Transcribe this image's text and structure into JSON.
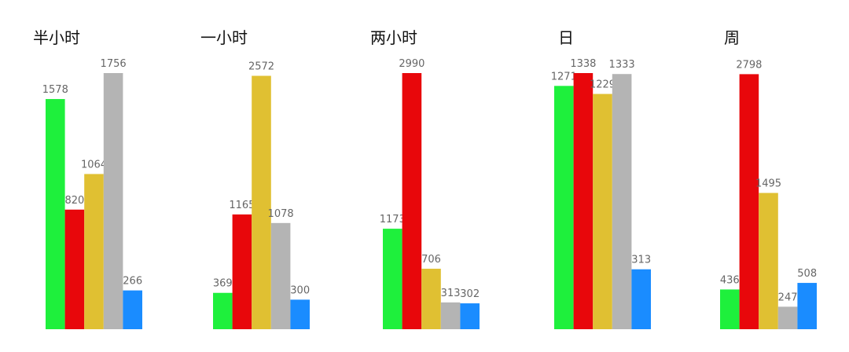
{
  "chart_data": [
    {
      "type": "bar",
      "title": "半小时",
      "values": [
        1578,
        820,
        1064,
        1756,
        266
      ],
      "colors": [
        "#1ef03c",
        "#e8070b",
        "#e0c032",
        "#b4b4b4",
        "#1a8cff"
      ],
      "ylim": [
        0,
        1756
      ]
    },
    {
      "type": "bar",
      "title": "一小时",
      "values": [
        369,
        1165,
        2572,
        1078,
        300
      ],
      "colors": [
        "#1ef03c",
        "#e8070b",
        "#e0c032",
        "#b4b4b4",
        "#1a8cff"
      ],
      "ylim": [
        0,
        2600
      ]
    },
    {
      "type": "bar",
      "title": "两小时",
      "values": [
        1173,
        2990,
        706,
        313,
        302
      ],
      "colors": [
        "#1ef03c",
        "#e8070b",
        "#e0c032",
        "#b4b4b4",
        "#1a8cff"
      ],
      "ylim": [
        0,
        2990
      ]
    },
    {
      "type": "bar",
      "title": "日",
      "values": [
        1271,
        1338,
        1229,
        1333,
        313
      ],
      "colors": [
        "#1ef03c",
        "#e8070b",
        "#e0c032",
        "#b4b4b4",
        "#1a8cff"
      ],
      "ylim": [
        0,
        1338
      ]
    },
    {
      "type": "bar",
      "title": "周",
      "values": [
        436,
        2798,
        1495,
        247,
        508
      ],
      "colors": [
        "#1ef03c",
        "#e8070b",
        "#e0c032",
        "#b4b4b4",
        "#1a8cff"
      ],
      "ylim": [
        0,
        2810
      ]
    }
  ]
}
